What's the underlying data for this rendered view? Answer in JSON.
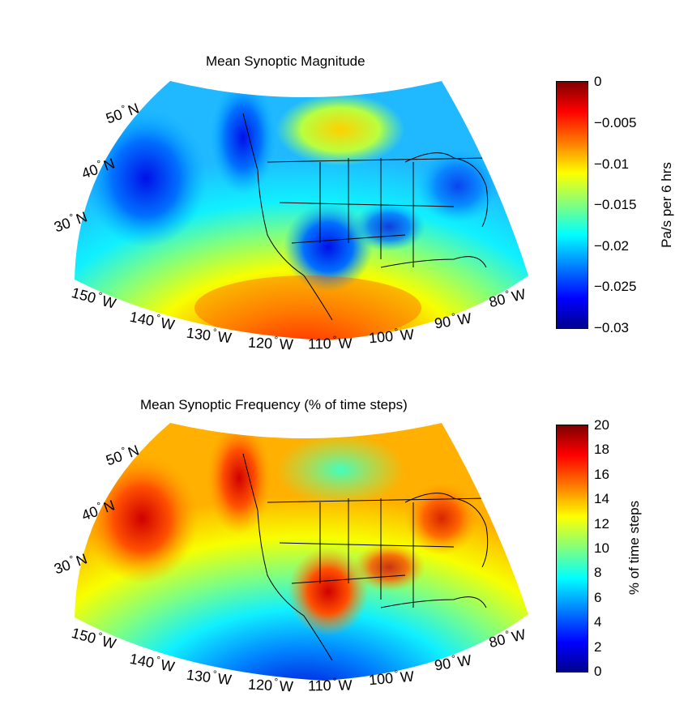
{
  "panels": [
    {
      "title": "Mean Synoptic Magnitude",
      "colorbar": {
        "label": "Pa/s per 6 hrs",
        "ticks": [
          "0",
          "−0.005",
          "−0.01",
          "−0.015",
          "−0.02",
          "−0.025",
          "−0.03"
        ],
        "range": [
          -0.03,
          0
        ]
      },
      "lat_labels": [
        {
          "value": "50",
          "hemi": "N"
        },
        {
          "value": "40",
          "hemi": "N"
        },
        {
          "value": "30",
          "hemi": "N"
        }
      ],
      "lon_labels": [
        {
          "value": "150",
          "hemi": "W"
        },
        {
          "value": "140",
          "hemi": "W"
        },
        {
          "value": "130",
          "hemi": "W"
        },
        {
          "value": "120",
          "hemi": "W"
        },
        {
          "value": "110",
          "hemi": "W"
        },
        {
          "value": "100",
          "hemi": "W"
        },
        {
          "value": "90",
          "hemi": "W"
        },
        {
          "value": "80",
          "hemi": "W"
        }
      ]
    },
    {
      "title": "Mean Synoptic Frequency (% of time steps)",
      "colorbar": {
        "label": "% of time steps",
        "ticks": [
          "20",
          "18",
          "16",
          "14",
          "12",
          "10",
          "8",
          "6",
          "4",
          "2",
          "0"
        ],
        "range": [
          0,
          20
        ]
      },
      "lat_labels": [
        {
          "value": "50",
          "hemi": "N"
        },
        {
          "value": "40",
          "hemi": "N"
        },
        {
          "value": "30",
          "hemi": "N"
        }
      ],
      "lon_labels": [
        {
          "value": "150",
          "hemi": "W"
        },
        {
          "value": "140",
          "hemi": "W"
        },
        {
          "value": "130",
          "hemi": "W"
        },
        {
          "value": "120",
          "hemi": "W"
        },
        {
          "value": "110",
          "hemi": "W"
        },
        {
          "value": "100",
          "hemi": "W"
        },
        {
          "value": "90",
          "hemi": "W"
        },
        {
          "value": "80",
          "hemi": "W"
        }
      ]
    }
  ],
  "colormap": "jet",
  "jet_colors": [
    "#00008f",
    "#0000ff",
    "#007fff",
    "#00ffff",
    "#7fff7f",
    "#ffff00",
    "#ff7f00",
    "#ff0000",
    "#7f0000"
  ]
}
